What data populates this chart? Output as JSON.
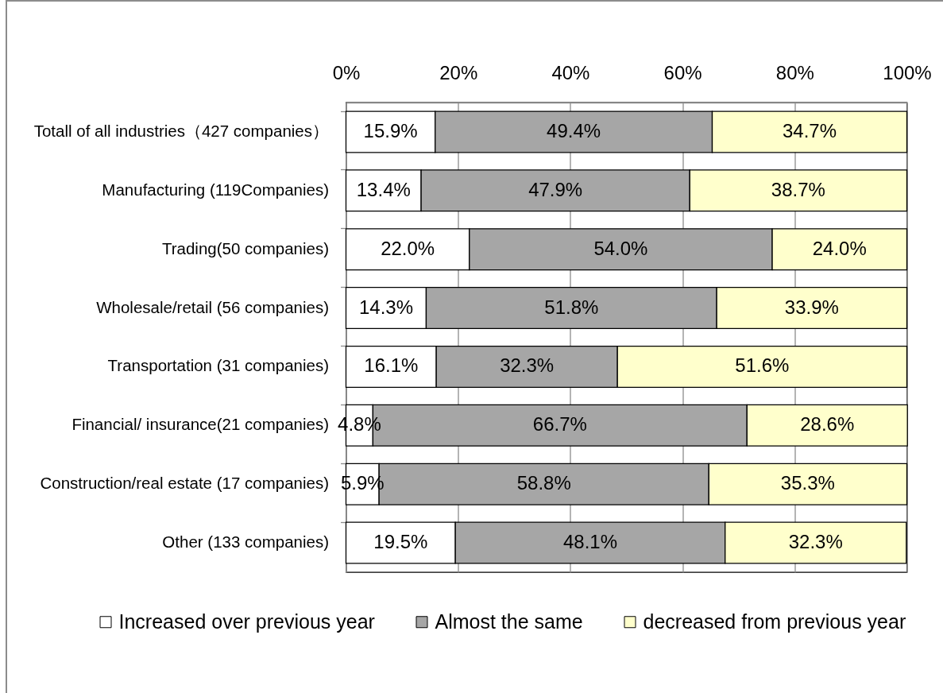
{
  "chart_data": {
    "type": "bar",
    "orientation": "horizontal",
    "stacked": true,
    "categories": [
      "Totall of all industries（427 companies）",
      "Manufacturing (119Companies)",
      "Trading(50 companies)",
      "Wholesale/retail (56 companies)",
      "Transportation (31 companies)",
      "Financial/ insurance(21 companies)",
      "Construction/real estate (17 companies)",
      "Other (133 companies)"
    ],
    "series": [
      {
        "name": "Increased over previous year",
        "color": "#ffffff",
        "values": [
          15.9,
          13.4,
          22.0,
          14.3,
          16.1,
          4.8,
          5.9,
          19.5
        ],
        "value_labels": [
          "15.9%",
          "13.4%",
          "22.0%",
          "14.3%",
          "16.1%",
          "4.8%",
          "5.9%",
          "19.5%"
        ]
      },
      {
        "name": "Almost the same",
        "color": "#a6a6a6",
        "values": [
          49.4,
          47.9,
          54.0,
          51.8,
          32.3,
          66.7,
          58.8,
          48.1
        ],
        "value_labels": [
          "49.4%",
          "47.9%",
          "54.0%",
          "51.8%",
          "32.3%",
          "66.7%",
          "58.8%",
          "48.1%"
        ]
      },
      {
        "name": "decreased from previous year",
        "color": "#ffffcc",
        "values": [
          34.7,
          38.7,
          24.0,
          33.9,
          51.6,
          28.6,
          35.3,
          32.3
        ],
        "value_labels": [
          "34.7%",
          "38.7%",
          "24.0%",
          "33.9%",
          "51.6%",
          "28.6%",
          "35.3%",
          "32.3%"
        ]
      }
    ],
    "xlim": [
      0,
      100
    ],
    "xticks": [
      {
        "value": 0,
        "label": "0%"
      },
      {
        "value": 20,
        "label": "20%"
      },
      {
        "value": 40,
        "label": "40%"
      },
      {
        "value": 60,
        "label": "60%"
      },
      {
        "value": 80,
        "label": "80%"
      },
      {
        "value": 100,
        "label": "100%"
      }
    ],
    "grid": "x",
    "legend": "bottom"
  }
}
